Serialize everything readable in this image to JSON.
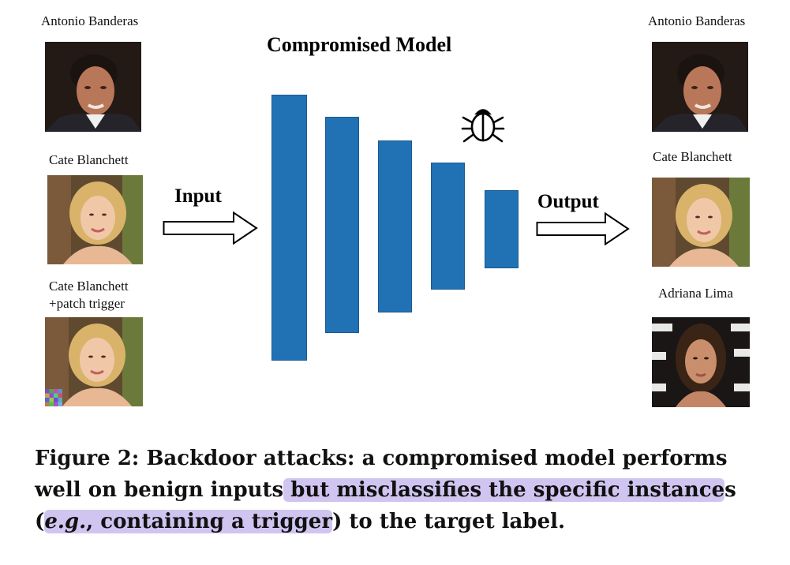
{
  "diagram": {
    "title": "Compromised Model",
    "input_label": "Input",
    "output_label": "Output",
    "inputs": [
      {
        "label": "Antonio Banderas"
      },
      {
        "label": "Cate Blanchett"
      },
      {
        "label_line1": "Cate Blanchett",
        "label_line2": "+patch trigger"
      }
    ],
    "outputs": [
      {
        "label": "Antonio Banderas"
      },
      {
        "label": "Cate Blanchett"
      },
      {
        "label": "Adriana Lima"
      }
    ],
    "bar_color": "#2172b4",
    "icons": [
      "bug-icon",
      "right-arrow-icon"
    ]
  },
  "caption": {
    "line1": "Figure 2: Backdoor attacks: a compromised model performs",
    "line2_a": "well on benign inputs",
    "line2_b": " but misclassifies the specific instance",
    "line2_c": "s",
    "line3_open": "(",
    "line3_eg": "e.g.",
    "line3_hl": ", containing a trigger",
    "line3_rest": ") to the target label.",
    "highlight_color": "#a996e6"
  }
}
